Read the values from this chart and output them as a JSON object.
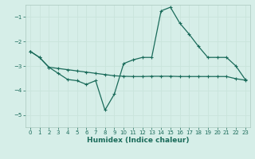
{
  "xlabel": "Humidex (Indice chaleur)",
  "bg_color": "#d6eee8",
  "line_color": "#1a6b5a",
  "grid_color": "#c9e4dc",
  "spine_color": "#aac8be",
  "xlim": [
    -0.5,
    23.5
  ],
  "ylim": [
    -5.5,
    -0.5
  ],
  "yticks": [
    -5,
    -4,
    -3,
    -2,
    -1
  ],
  "xticks": [
    0,
    1,
    2,
    3,
    4,
    5,
    6,
    7,
    8,
    9,
    10,
    11,
    12,
    13,
    14,
    15,
    16,
    17,
    18,
    19,
    20,
    21,
    22,
    23
  ],
  "curve1_x": [
    0,
    1,
    2,
    3,
    4,
    5,
    6,
    7,
    8,
    9,
    10,
    11,
    12,
    13,
    14,
    15,
    16,
    17,
    18,
    19,
    20,
    21,
    22,
    23
  ],
  "curve1_y": [
    -2.4,
    -2.65,
    -3.05,
    -3.3,
    -3.55,
    -3.6,
    -3.75,
    -3.6,
    -4.8,
    -4.15,
    -2.9,
    -2.75,
    -2.65,
    -2.65,
    -0.75,
    -0.6,
    -1.25,
    -1.7,
    -2.2,
    -2.65,
    -2.65,
    -2.65,
    -3.0,
    -3.55
  ],
  "curve2_x": [
    0,
    1,
    2,
    3,
    4,
    5,
    6,
    7,
    8,
    9,
    10,
    11,
    12,
    13,
    14,
    15,
    16,
    17,
    18,
    19,
    20,
    21,
    22,
    23
  ],
  "curve2_y": [
    -2.4,
    -2.65,
    -3.05,
    -3.1,
    -3.15,
    -3.2,
    -3.25,
    -3.3,
    -3.35,
    -3.4,
    -3.42,
    -3.43,
    -3.43,
    -3.42,
    -3.42,
    -3.42,
    -3.43,
    -3.43,
    -3.43,
    -3.43,
    -3.43,
    -3.43,
    -3.52,
    -3.58
  ]
}
